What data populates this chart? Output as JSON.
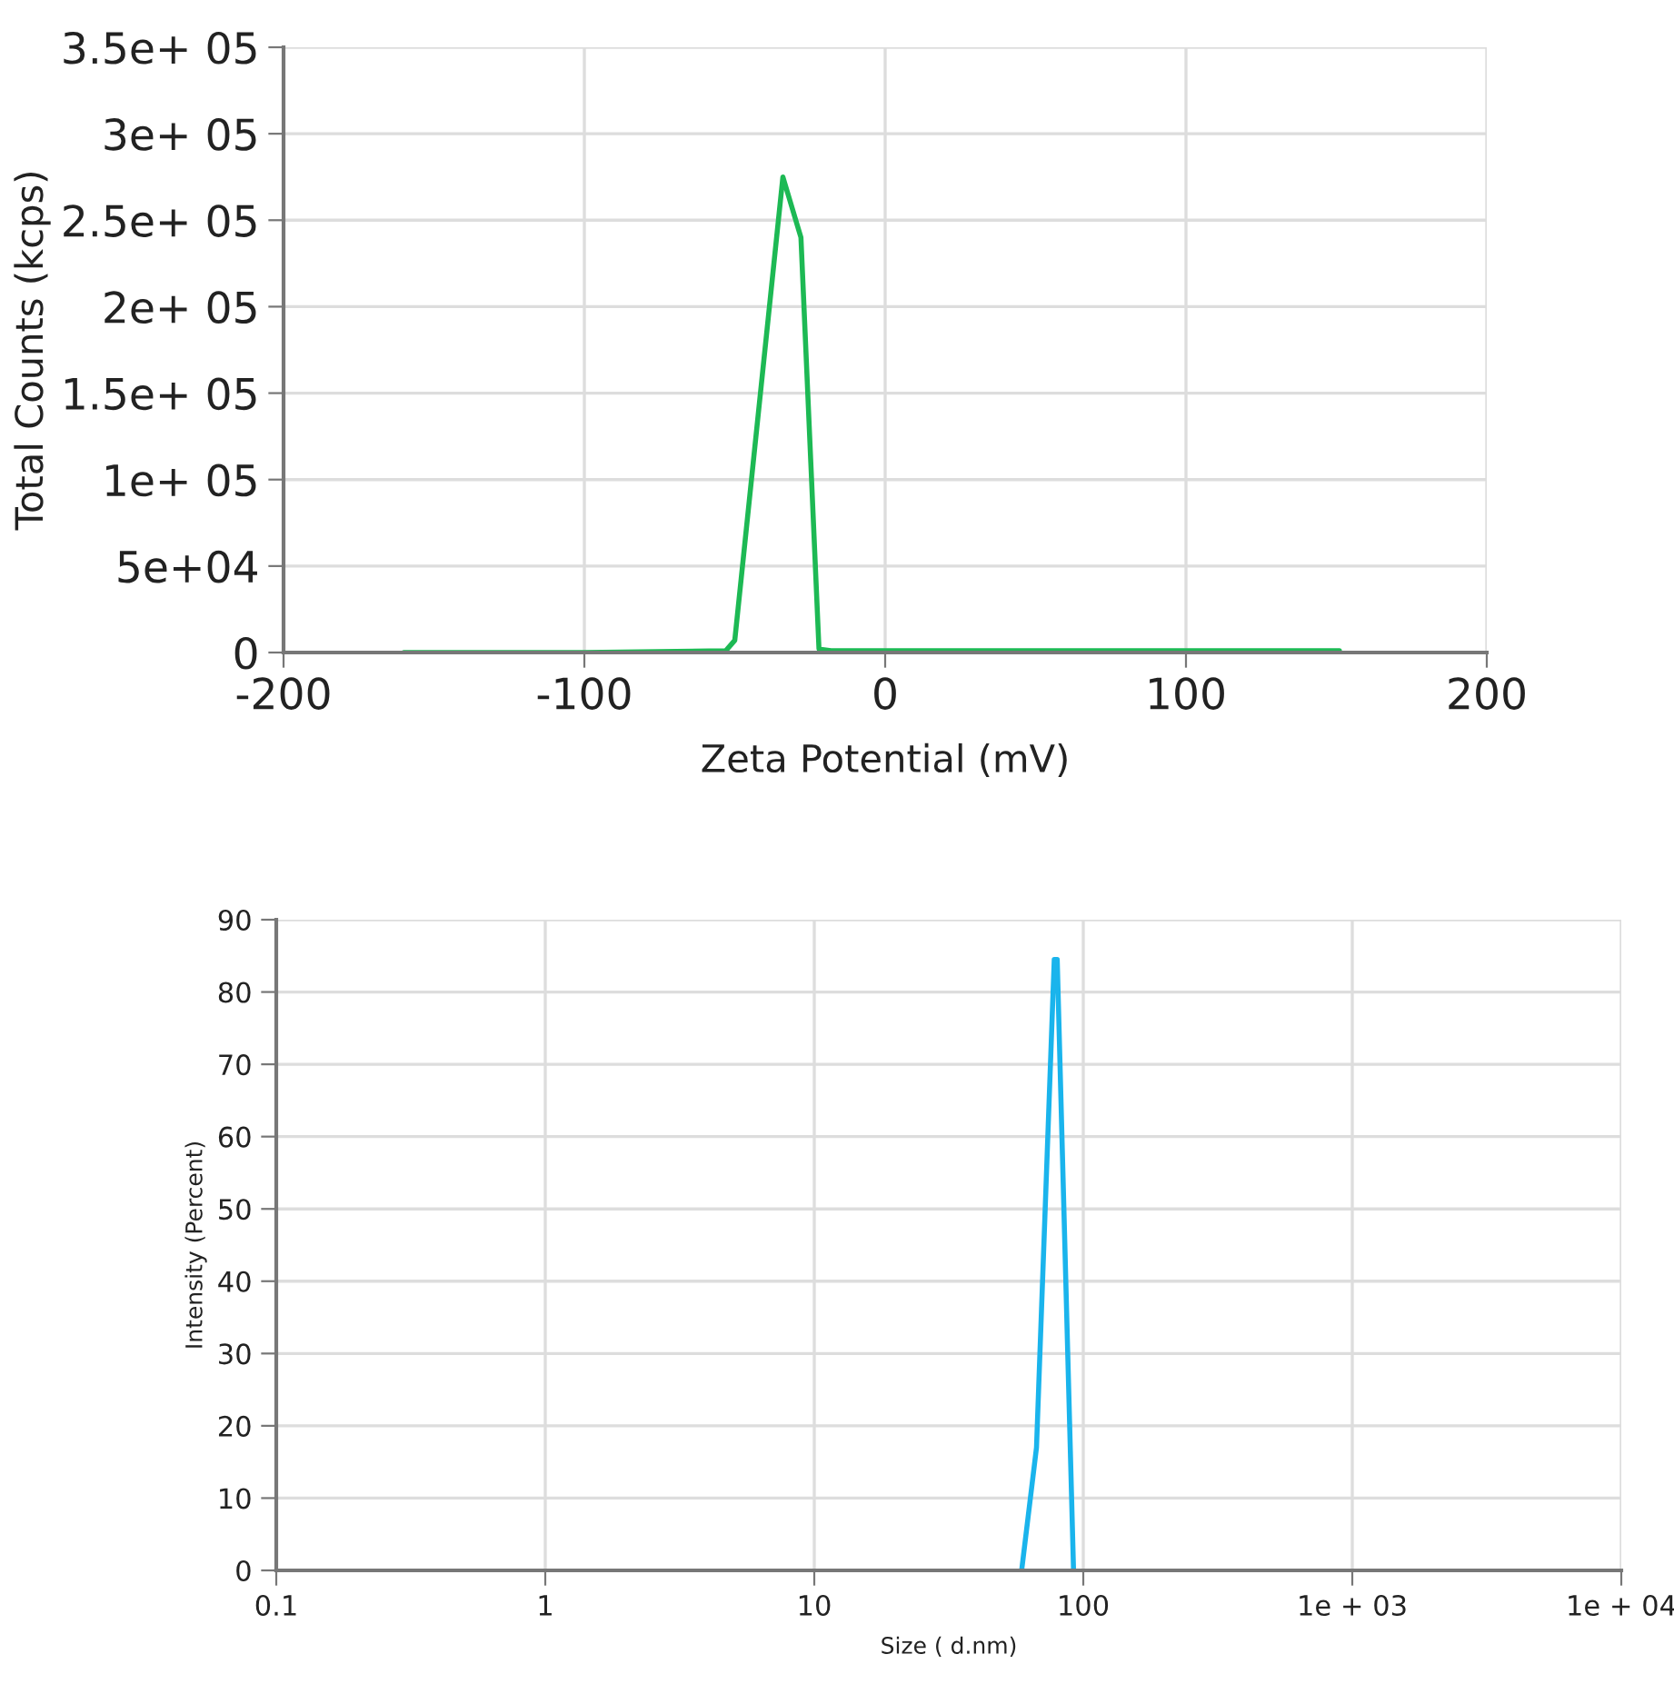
{
  "chart_data": [
    {
      "type": "line",
      "xlabel": "Zeta Potential (mV)",
      "ylabel": "Total Counts (kcps)",
      "series": [
        {
          "color": "#1db954",
          "x": [
            -160,
            -100,
            -53,
            -50,
            -34,
            -28,
            -22,
            -18,
            0,
            100,
            151
          ],
          "values": [
            0,
            0,
            1000,
            7000,
            275000,
            240000,
            2000,
            1000,
            1000,
            1000,
            1000
          ]
        }
      ],
      "xlim": [
        -200,
        200
      ],
      "xticks": [
        -200,
        -100,
        0,
        100,
        200
      ],
      "ylim": [
        0,
        350000
      ],
      "yticks": [
        {
          "value": 0,
          "label": "0"
        },
        {
          "value": 50000,
          "label": "5e+04"
        },
        {
          "value": 100000,
          "label": "1e+ 05"
        },
        {
          "value": 150000,
          "label": "1.5e+ 05"
        },
        {
          "value": 200000,
          "label": "2e+ 05"
        },
        {
          "value": 250000,
          "label": "2.5e+ 05"
        },
        {
          "value": 300000,
          "label": "3e+ 05"
        },
        {
          "value": 350000,
          "label": "3.5e+ 05"
        }
      ],
      "grid": true
    },
    {
      "type": "line",
      "xlabel": "Size ( d.nm)",
      "ylabel": "Intensity (Percent)",
      "log": "x",
      "series": [
        {
          "color": "#1ab4ec",
          "x": [
            59,
            67,
            78,
            80,
            92
          ],
          "values": [
            0,
            17,
            84.5,
            84.5,
            0
          ]
        }
      ],
      "xlim": [
        0.1,
        10000
      ],
      "xticks": [
        0.1,
        1,
        10,
        100,
        {
          "value": 1000,
          "label": "1e + 03"
        },
        {
          "value": 10000,
          "label": "1e + 04"
        }
      ],
      "ylim": [
        0,
        90
      ],
      "yticks": [
        0,
        10,
        20,
        30,
        40,
        50,
        60,
        70,
        80,
        90
      ],
      "grid": true
    }
  ]
}
